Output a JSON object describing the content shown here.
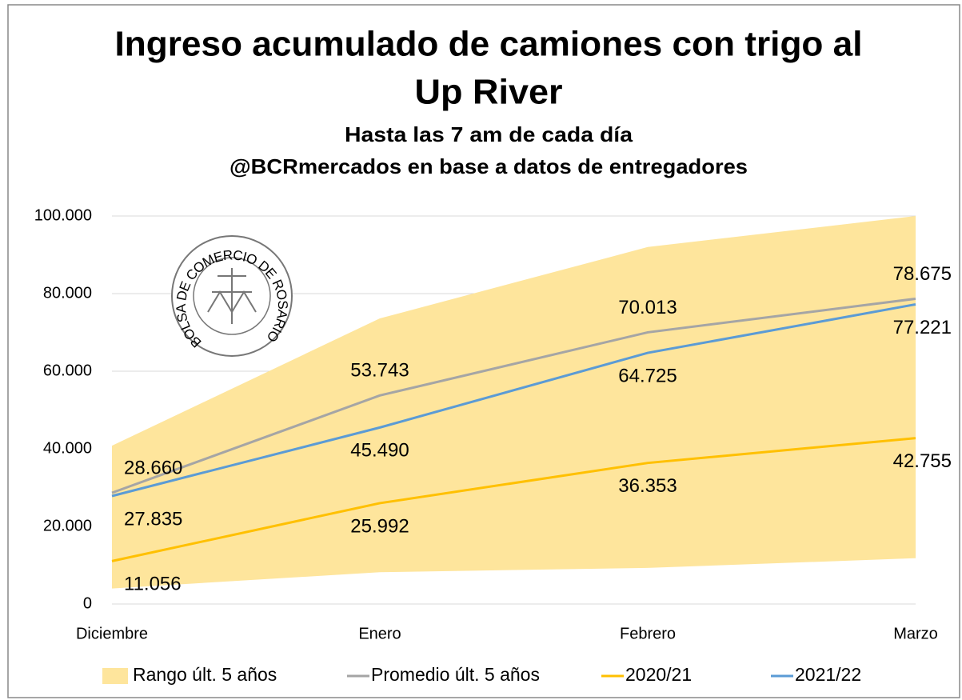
{
  "chart_data": {
    "type": "line",
    "title": [
      "Ingreso acumulado de camiones con trigo al",
      "Up River"
    ],
    "subtitle": [
      "Hasta las 7 am de cada día",
      "@BCRmercados en base a datos de entregadores"
    ],
    "logo_text": "BOLSA DE COMERCIO DE ROSARIO",
    "categories": [
      "Diciembre",
      "Enero",
      "Febrero",
      "Marzo"
    ],
    "range": {
      "name": "Rango últ. 5 años",
      "color": "#fee59c",
      "low": [
        4000,
        8200,
        9300,
        11800
      ],
      "high": [
        40800,
        73600,
        92000,
        100000
      ]
    },
    "series": [
      {
        "name": "Promedio últ. 5 años",
        "color": "#a5a5a5",
        "values": [
          28660,
          53743,
          70013,
          78675
        ],
        "value_labels": [
          "28.660",
          "53.743",
          "70.013",
          "78.675"
        ]
      },
      {
        "name": "2020/21",
        "color": "#ffc000",
        "values": [
          11056,
          25992,
          36353,
          42755
        ],
        "value_labels": [
          "11.056",
          "25.992",
          "36.353",
          "42.755"
        ]
      },
      {
        "name": "2021/22",
        "color": "#5b9bd5",
        "values": [
          27835,
          45490,
          64725,
          77221
        ],
        "value_labels": [
          "27.835",
          "45.490",
          "64.725",
          "77.221"
        ]
      }
    ],
    "ylim": [
      0,
      100000
    ],
    "yticks": [
      0,
      {
        "value": 20000,
        "label": "20.000"
      },
      {
        "value": 40000,
        "label": "40.000"
      },
      {
        "value": 60000,
        "label": "60.000"
      },
      {
        "value": 80000,
        "label": "80.000"
      },
      {
        "value": 100000,
        "label": "100.000"
      }
    ],
    "grid": true,
    "legend": "bottom"
  }
}
